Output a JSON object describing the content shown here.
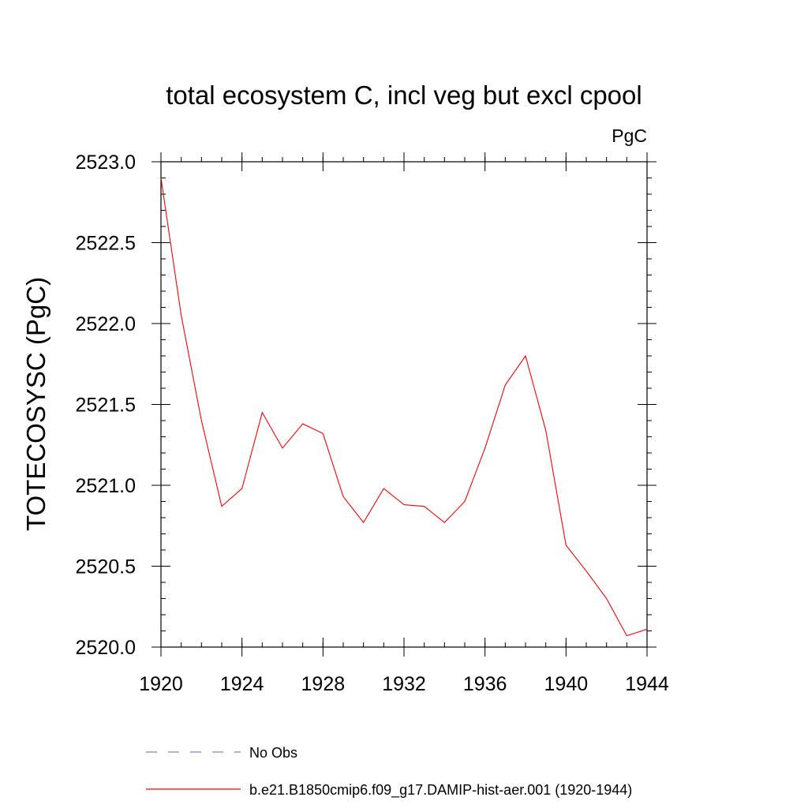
{
  "chart_data": {
    "type": "line",
    "title": "total ecosystem C, incl veg but excl cpool",
    "units_label": "PgC",
    "ylabel": "TOTECOSYSC  (PgC)",
    "xlabel": "",
    "xlim": [
      1920,
      1944
    ],
    "ylim": [
      2520.0,
      2523.0
    ],
    "x_ticks": [
      1920,
      1924,
      1928,
      1932,
      1936,
      1940,
      1944
    ],
    "x_tick_labels": [
      "1920",
      "1924",
      "1928",
      "1932",
      "1936",
      "1940",
      "1944"
    ],
    "y_ticks": [
      2520.0,
      2520.5,
      2521.0,
      2521.5,
      2522.0,
      2522.5,
      2523.0
    ],
    "y_tick_labels": [
      "2520.0",
      "2520.5",
      "2521.0",
      "2521.5",
      "2522.0",
      "2522.5",
      "2523.0"
    ],
    "grid": false,
    "legend_position": "bottom",
    "series": [
      {
        "name": "b.e21.B1850cmip6.f09_g17.DAMIP-hist-aer.001 (1920-1944)",
        "color": "#ff0000",
        "dash": "solid",
        "x": [
          1920,
          1921,
          1922,
          1923,
          1924,
          1925,
          1926,
          1927,
          1928,
          1929,
          1930,
          1931,
          1932,
          1933,
          1934,
          1935,
          1936,
          1937,
          1938,
          1939,
          1940,
          1941,
          1942,
          1943,
          1944
        ],
        "y": [
          2522.9,
          2522.05,
          2521.4,
          2520.87,
          2520.98,
          2521.45,
          2521.23,
          2521.38,
          2521.32,
          2520.93,
          2520.77,
          2520.98,
          2520.88,
          2520.87,
          2520.77,
          2520.9,
          2521.23,
          2521.62,
          2521.8,
          2521.34,
          2520.63,
          2520.47,
          2520.3,
          2520.07,
          2520.11
        ]
      },
      {
        "name": "No Obs",
        "color": "#8a7fc4",
        "dash": "dashed",
        "x": [],
        "y": []
      }
    ]
  }
}
